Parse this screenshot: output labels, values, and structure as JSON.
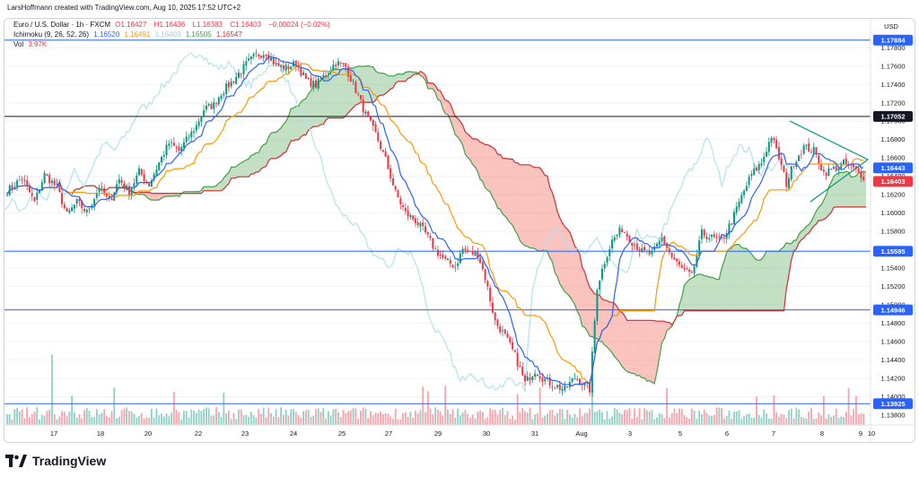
{
  "credit": "LarsHoffmann created with TradingView.com, Aug 10, 2025 17:52 UTC+2",
  "legend": {
    "symbol": "Euro / U.S. Dollar · 1h · FXCM",
    "ohlc": {
      "O": "1.16427",
      "H": "1.16436",
      "L": "1.16383",
      "C": "1.16403",
      "change": "−0.00024 (−0.02%)"
    },
    "ichimoku_label": "Ichimoku (9, 26, 52, 26)",
    "ichimoku_values": [
      "1.16520",
      "1.16491",
      "1.16403",
      "1.16505",
      "1.16547"
    ],
    "vol_label": "Vol",
    "vol_value": "3.97K"
  },
  "currency": "USD",
  "brand": "TradingView",
  "colors": {
    "up": "#089981",
    "down": "#f23645",
    "tenkan": "#2962ff",
    "kijun": "#ff9800",
    "chikou": "#b2e3f0",
    "span_a": "#43a047",
    "span_b": "#d32f2f",
    "hline": "#2962ff",
    "hline_dark": "#131722",
    "triangle": "#089981"
  },
  "chart_data": {
    "type": "candlestick",
    "ylim": [
      1.1382,
      1.1792
    ],
    "y_ticks": [
      "1.17800",
      "1.17600",
      "1.17400",
      "1.17200",
      "1.17000",
      "1.16800",
      "1.16600",
      "1.16400",
      "1.16200",
      "1.16000",
      "1.15800",
      "1.15600",
      "1.15400",
      "1.15200",
      "1.15000",
      "1.14800",
      "1.14600",
      "1.14400",
      "1.14200",
      "1.14000",
      "1.13800"
    ],
    "x_ticks": [
      "17",
      "18",
      "20",
      "22",
      "23",
      "24",
      "25",
      "27",
      "29",
      "30",
      "31",
      "Aug",
      "3",
      "5",
      "6",
      "7",
      "8",
      "9",
      "10"
    ],
    "horizontal_levels": [
      {
        "label": "1.17884",
        "value": 1.17884,
        "style": "blue"
      },
      {
        "label": "1.17052",
        "value": 1.17052,
        "style": "dark"
      },
      {
        "label": "1.15585",
        "value": 1.15585,
        "style": "blue"
      },
      {
        "label": "1.14946",
        "value": 1.14946,
        "style": "blue"
      },
      {
        "label": "1.13925",
        "value": 1.13925,
        "style": "blue"
      }
    ],
    "price_tags": [
      {
        "label": "1.16443",
        "value": 1.16443,
        "color": "#2962ff"
      },
      {
        "label": "1.16403",
        "value": 1.16403,
        "color": "#f23645"
      }
    ],
    "close_path": [
      [
        0,
        1.1624
      ],
      [
        6,
        1.1638
      ],
      [
        11,
        1.1612
      ],
      [
        15,
        1.1642
      ],
      [
        20,
        1.1628
      ],
      [
        24,
        1.1598
      ],
      [
        28,
        1.1612
      ],
      [
        32,
        1.1601
      ],
      [
        37,
        1.1628
      ],
      [
        41,
        1.1612
      ],
      [
        45,
        1.1637
      ],
      [
        49,
        1.1623
      ],
      [
        53,
        1.1645
      ],
      [
        57,
        1.1631
      ],
      [
        61,
        1.1655
      ],
      [
        65,
        1.1676
      ],
      [
        69,
        1.1668
      ],
      [
        73,
        1.1683
      ],
      [
        76,
        1.1695
      ],
      [
        79,
        1.1713
      ],
      [
        83,
        1.1718
      ],
      [
        86,
        1.1731
      ],
      [
        90,
        1.1742
      ],
      [
        93,
        1.1752
      ],
      [
        97,
        1.1765
      ],
      [
        100,
        1.1772
      ],
      [
        104,
        1.1775
      ],
      [
        108,
        1.1761
      ],
      [
        112,
        1.1758
      ],
      [
        116,
        1.1763
      ],
      [
        120,
        1.1745
      ],
      [
        124,
        1.1739
      ],
      [
        128,
        1.1752
      ],
      [
        132,
        1.1764
      ],
      [
        136,
        1.1759
      ],
      [
        140,
        1.1734
      ],
      [
        144,
        1.1707
      ],
      [
        148,
        1.1686
      ],
      [
        152,
        1.1658
      ],
      [
        156,
        1.1622
      ],
      [
        160,
        1.16
      ],
      [
        164,
        1.1592
      ],
      [
        168,
        1.1578
      ],
      [
        172,
        1.156
      ],
      [
        176,
        1.1548
      ],
      [
        180,
        1.1542
      ],
      [
        183,
        1.1561
      ],
      [
        186,
        1.1556
      ],
      [
        189,
        1.1556
      ],
      [
        192,
        1.153
      ],
      [
        196,
        1.1482
      ],
      [
        200,
        1.1466
      ],
      [
        204,
        1.1445
      ],
      [
        208,
        1.1415
      ],
      [
        212,
        1.1429
      ],
      [
        216,
        1.1418
      ],
      [
        220,
        1.1412
      ],
      [
        224,
        1.1408
      ],
      [
        228,
        1.1421
      ],
      [
        231,
        1.1415
      ],
      [
        234,
        1.1408
      ],
      [
        237,
        1.152
      ],
      [
        240,
        1.1548
      ],
      [
        243,
        1.157
      ],
      [
        247,
        1.1583
      ],
      [
        251,
        1.1569
      ],
      [
        255,
        1.1558
      ],
      [
        259,
        1.1555
      ],
      [
        263,
        1.1573
      ],
      [
        267,
        1.1552
      ],
      [
        271,
        1.1539
      ],
      [
        275,
        1.1531
      ],
      [
        279,
        1.1578
      ],
      [
        283,
        1.1573
      ],
      [
        287,
        1.157
      ],
      [
        291,
        1.1591
      ],
      [
        295,
        1.1618
      ],
      [
        299,
        1.1642
      ],
      [
        303,
        1.1655
      ],
      [
        307,
        1.1684
      ],
      [
        310,
        1.166
      ],
      [
        313,
        1.1632
      ],
      [
        316,
        1.1655
      ],
      [
        320,
        1.1672
      ],
      [
        324,
        1.1668
      ],
      [
        328,
        1.1644
      ],
      [
        332,
        1.1648
      ],
      [
        336,
        1.1654
      ],
      [
        340,
        1.1648
      ],
      [
        344,
        1.164
      ]
    ],
    "volume_range": [
      0,
      100
    ],
    "series": [
      {
        "name": "Ichimoku Tenkan",
        "color": "#2962ff"
      },
      {
        "name": "Ichimoku Kijun",
        "color": "#ff9800"
      },
      {
        "name": "Ichimoku Chikou",
        "color": "#b2e3f0"
      },
      {
        "name": "Senkou Span A",
        "color": "#43a047"
      },
      {
        "name": "Senkou Span B",
        "color": "#d32f2f"
      },
      {
        "name": "Vol",
        "color": "#f23645"
      }
    ]
  }
}
